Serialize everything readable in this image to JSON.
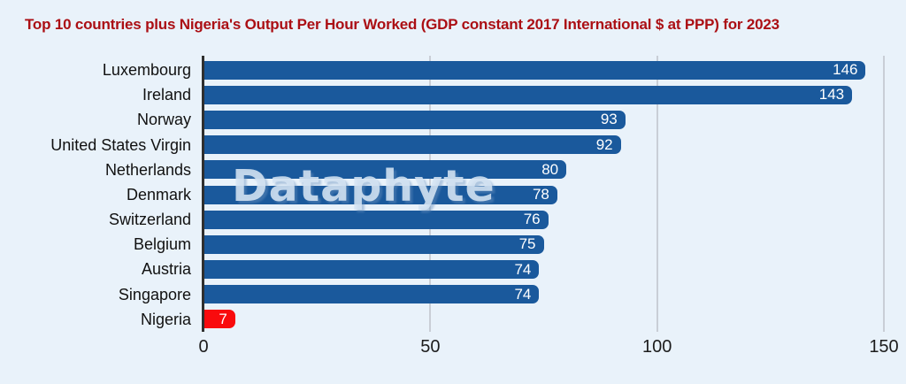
{
  "watermark": {
    "text": "Dataphyte"
  },
  "colors": {
    "background": "#e9f2fa",
    "title": "#ab0f14",
    "bar": "#1a599c",
    "highlight_bar": "#f90b0d",
    "gridline": "#c9ced6",
    "axis_line": "#2f2f2f",
    "tick_label": "#1c1c1c",
    "category_label": "#111111",
    "value_label": "#ffffff",
    "watermark": "#d5e4f3"
  },
  "chart_data": {
    "type": "bar",
    "orientation": "horizontal",
    "title": "Top 10 countries plus Nigeria's Output Per Hour Worked (GDP constant 2017 International $ at PPP) for 2023",
    "categories": [
      "Luxembourg",
      "Ireland",
      "Norway",
      "United States Virgin",
      "Netherlands",
      "Denmark",
      "Switzerland",
      "Belgium",
      "Austria",
      "Singapore",
      "Nigeria"
    ],
    "values": [
      146,
      143,
      93,
      92,
      80,
      78,
      76,
      75,
      74,
      74,
      7
    ],
    "bar_colors": [
      "#1a599c",
      "#1a599c",
      "#1a599c",
      "#1a599c",
      "#1a599c",
      "#1a599c",
      "#1a599c",
      "#1a599c",
      "#1a599c",
      "#1a599c",
      "#f90b0d"
    ],
    "xlabel": "",
    "ylabel": "",
    "xlim": [
      0,
      150
    ],
    "xticks": [
      0,
      50,
      100,
      150
    ],
    "grid": true,
    "legend": false,
    "value_labels": true,
    "highlight": {
      "category": "Nigeria",
      "color": "#f90b0d"
    }
  }
}
